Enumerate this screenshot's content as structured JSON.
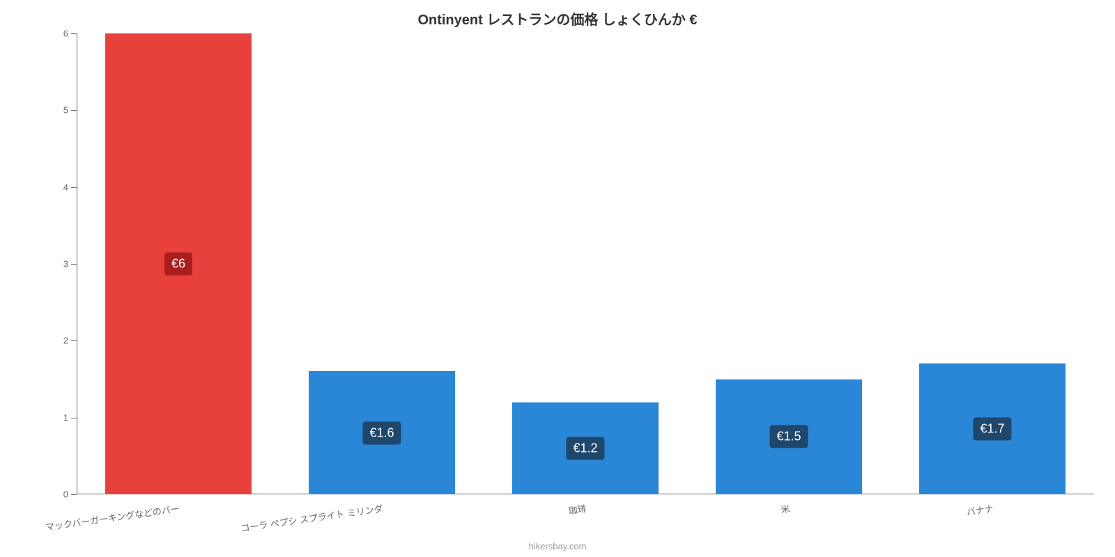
{
  "chart": {
    "type": "bar",
    "title": "Ontinyent レストランの価格 しょくひんか €",
    "title_fontsize": 20,
    "title_color": "#333333",
    "background_color": "#ffffff",
    "axis_color": "#666666",
    "y": {
      "min": 0,
      "max": 6,
      "tick_step": 1,
      "tick_labels": [
        "0",
        "1",
        "2",
        "3",
        "4",
        "5",
        "6"
      ],
      "tick_fontsize": 13,
      "tick_color": "#666666"
    },
    "x": {
      "tick_fontsize": 13,
      "tick_color": "#666666",
      "tick_rotation_deg": -8
    },
    "bars": [
      {
        "category": "マックバーガーキングなどのバー",
        "value": 6.0,
        "display": "€6",
        "color": "#e8403a",
        "label_bg": "#ab1e1e"
      },
      {
        "category": "コーラ ペプシ スプライト ミリンダ",
        "value": 1.6,
        "display": "€1.6",
        "color": "#2a87d7",
        "label_bg": "#1f466b"
      },
      {
        "category": "珈琲",
        "value": 1.2,
        "display": "€1.2",
        "color": "#2a87d7",
        "label_bg": "#1f466b"
      },
      {
        "category": "米",
        "value": 1.5,
        "display": "€1.5",
        "color": "#2a87d7",
        "label_bg": "#1f466b"
      },
      {
        "category": "バナナ",
        "value": 1.7,
        "display": "€1.7",
        "color": "#2a87d7",
        "label_bg": "#1f466b"
      }
    ],
    "bar_width_ratio": 0.72,
    "value_label_fontsize": 18,
    "value_label_text_color": "#ffffff",
    "credit": "hikersbay.com",
    "credit_color": "#999999",
    "credit_fontsize": 13
  }
}
